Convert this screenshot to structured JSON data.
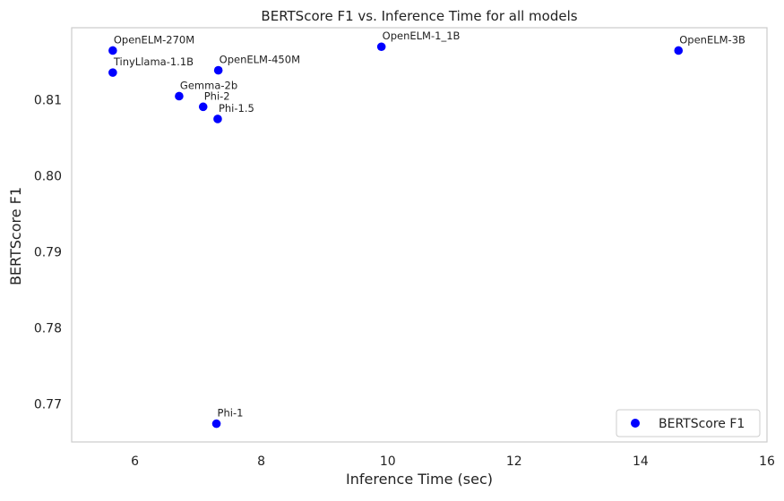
{
  "chart_data": {
    "type": "scatter",
    "title": "BERTScore F1 vs. Inference Time for all models",
    "xlabel": "Inference Time (sec)",
    "ylabel": "BERTScore F1",
    "xlim": [
      5,
      16
    ],
    "ylim": [
      0.765,
      0.8195
    ],
    "xticks": [
      6,
      8,
      10,
      12,
      14,
      16
    ],
    "yticks": [
      0.77,
      0.78,
      0.79,
      0.8,
      0.81
    ],
    "ytick_labels": [
      "0.77",
      "0.78",
      "0.79",
      "0.80",
      "0.81"
    ],
    "grid": false,
    "legend_position": "lower-right",
    "series": [
      {
        "name": "BERTScore F1",
        "color": "#0000ff",
        "points": [
          {
            "label": "OpenELM-270M",
            "x": 5.65,
            "y": 0.8165
          },
          {
            "label": "TinyLlama-1.1B",
            "x": 5.65,
            "y": 0.8136
          },
          {
            "label": "OpenELM-450M",
            "x": 7.32,
            "y": 0.8139
          },
          {
            "label": "Gemma-2b",
            "x": 6.7,
            "y": 0.8105
          },
          {
            "label": "Phi-2",
            "x": 7.08,
            "y": 0.8091
          },
          {
            "label": "Phi-1.5",
            "x": 7.31,
            "y": 0.8075
          },
          {
            "label": "OpenELM-1_1B",
            "x": 9.9,
            "y": 0.817
          },
          {
            "label": "OpenELM-3B",
            "x": 14.6,
            "y": 0.8165
          },
          {
            "label": "Phi-1",
            "x": 7.29,
            "y": 0.7674
          }
        ]
      }
    ]
  }
}
